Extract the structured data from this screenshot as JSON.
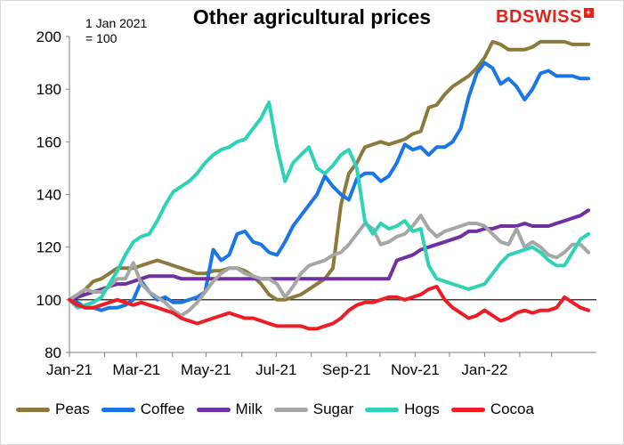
{
  "title": "Other agricultural prices",
  "note_line1": "1 Jan 2021",
  "note_line2": "= 100",
  "logo_text": "BDSWISS",
  "logo_badge": "+",
  "chart_data": {
    "type": "line",
    "title": "Other agricultural prices",
    "note": "1 Jan 2021 = 100",
    "xlabel": "",
    "ylabel": "",
    "ylim": [
      80,
      200
    ],
    "yticks": [
      80,
      100,
      120,
      140,
      160,
      180,
      200
    ],
    "xtick_labels": [
      "Jan-21",
      "Mar-21",
      "May-21",
      "Jul-21",
      "Sep-21",
      "Nov-21",
      "Jan-22"
    ],
    "reference_line": 100,
    "grid": false,
    "legend_position": "bottom",
    "x_weeks": [
      0,
      1,
      2,
      3,
      4,
      5,
      6,
      7,
      8,
      9,
      10,
      11,
      12,
      13,
      14,
      15,
      16,
      17,
      18,
      19,
      20,
      21,
      22,
      23,
      24,
      25,
      26,
      27,
      28,
      29,
      30,
      31,
      32,
      33,
      34,
      35,
      36,
      37,
      38,
      39,
      40,
      41,
      42,
      43,
      44,
      45,
      46,
      47,
      48,
      49,
      50,
      51,
      52,
      53,
      54,
      55,
      56,
      57,
      58,
      59,
      60,
      61,
      62,
      63,
      64,
      65
    ],
    "series": [
      {
        "name": "Peas",
        "color": "#8c7a3c",
        "values": [
          100,
          101,
          104,
          107,
          108,
          110,
          112,
          112,
          112,
          113,
          114,
          115,
          114,
          113,
          112,
          111,
          110,
          110,
          111,
          111,
          112,
          112,
          111,
          109,
          106,
          102,
          100,
          100,
          101,
          102,
          104,
          106,
          108,
          112,
          136,
          148,
          152,
          158,
          159,
          160,
          159,
          160,
          161,
          163,
          164,
          173,
          174,
          178,
          181,
          183,
          185,
          188,
          192,
          198,
          197,
          195,
          195,
          195,
          196,
          198,
          198,
          198,
          198,
          197,
          197,
          197
        ]
      },
      {
        "name": "Coffee",
        "color": "#1a75e6",
        "values": [
          100,
          99,
          97,
          97,
          96,
          97,
          97,
          98,
          100,
          107,
          103,
          100,
          101,
          99,
          99,
          100,
          101,
          103,
          119,
          115,
          117,
          125,
          126,
          122,
          121,
          118,
          117,
          122,
          128,
          132,
          136,
          140,
          147,
          143,
          140,
          138,
          146,
          148,
          148,
          145,
          147,
          152,
          159,
          157,
          158,
          155,
          158,
          158,
          160,
          165,
          177,
          186,
          190,
          188,
          182,
          184,
          181,
          176,
          180,
          186,
          187,
          185,
          185,
          185,
          184,
          184
        ]
      },
      {
        "name": "Milk",
        "color": "#7030a0",
        "values": [
          100,
          101,
          102,
          103,
          104,
          105,
          106,
          106,
          107,
          108,
          109,
          109,
          109,
          109,
          108,
          108,
          108,
          108,
          108,
          108,
          108,
          108,
          108,
          108,
          108,
          108,
          108,
          108,
          108,
          108,
          108,
          108,
          108,
          108,
          108,
          108,
          108,
          108,
          108,
          108,
          108,
          115,
          116,
          117,
          119,
          120,
          121,
          122,
          123,
          124,
          126,
          126,
          127,
          127,
          128,
          128,
          128,
          129,
          128,
          128,
          128,
          129,
          130,
          131,
          132,
          134
        ]
      },
      {
        "name": "Sugar",
        "color": "#a6a6a6",
        "values": [
          100,
          102,
          104,
          103,
          103,
          105,
          108,
          108,
          114,
          106,
          103,
          101,
          99,
          96,
          94,
          96,
          99,
          103,
          107,
          110,
          112,
          112,
          110,
          109,
          108,
          108,
          106,
          101,
          105,
          110,
          113,
          114,
          115,
          117,
          118,
          121,
          125,
          129,
          127,
          121,
          122,
          124,
          125,
          128,
          132,
          127,
          124,
          126,
          127,
          128,
          129,
          129,
          128,
          125,
          122,
          121,
          127,
          120,
          122,
          120,
          117,
          116,
          118,
          121,
          121,
          118
        ]
      },
      {
        "name": "Hogs",
        "color": "#2ed3b6",
        "values": [
          100,
          97,
          98,
          99,
          101,
          106,
          111,
          117,
          122,
          124,
          125,
          130,
          136,
          141,
          143,
          145,
          148,
          152,
          155,
          157,
          158,
          160,
          161,
          165,
          169,
          175,
          158,
          145,
          152,
          155,
          158,
          150,
          148,
          151,
          155,
          157,
          150,
          130,
          125,
          129,
          127,
          128,
          130,
          126,
          127,
          113,
          108,
          107,
          106,
          105,
          104,
          105,
          106,
          110,
          114,
          117,
          118,
          119,
          120,
          118,
          115,
          113,
          113,
          118,
          123,
          125
        ]
      },
      {
        "name": "Cocoa",
        "color": "#ee1c25",
        "values": [
          100,
          98,
          97,
          97,
          98,
          99,
          100,
          99,
          98,
          99,
          98,
          97,
          96,
          95,
          93,
          92,
          91,
          92,
          93,
          94,
          95,
          94,
          93,
          93,
          92,
          91,
          90,
          90,
          90,
          90,
          89,
          89,
          90,
          91,
          93,
          96,
          98,
          99,
          99,
          100,
          101,
          101,
          100,
          101,
          102,
          104,
          105,
          100,
          97,
          95,
          93,
          94,
          96,
          94,
          92,
          93,
          95,
          96,
          95,
          96,
          96,
          97,
          101,
          99,
          97,
          96
        ]
      }
    ]
  }
}
